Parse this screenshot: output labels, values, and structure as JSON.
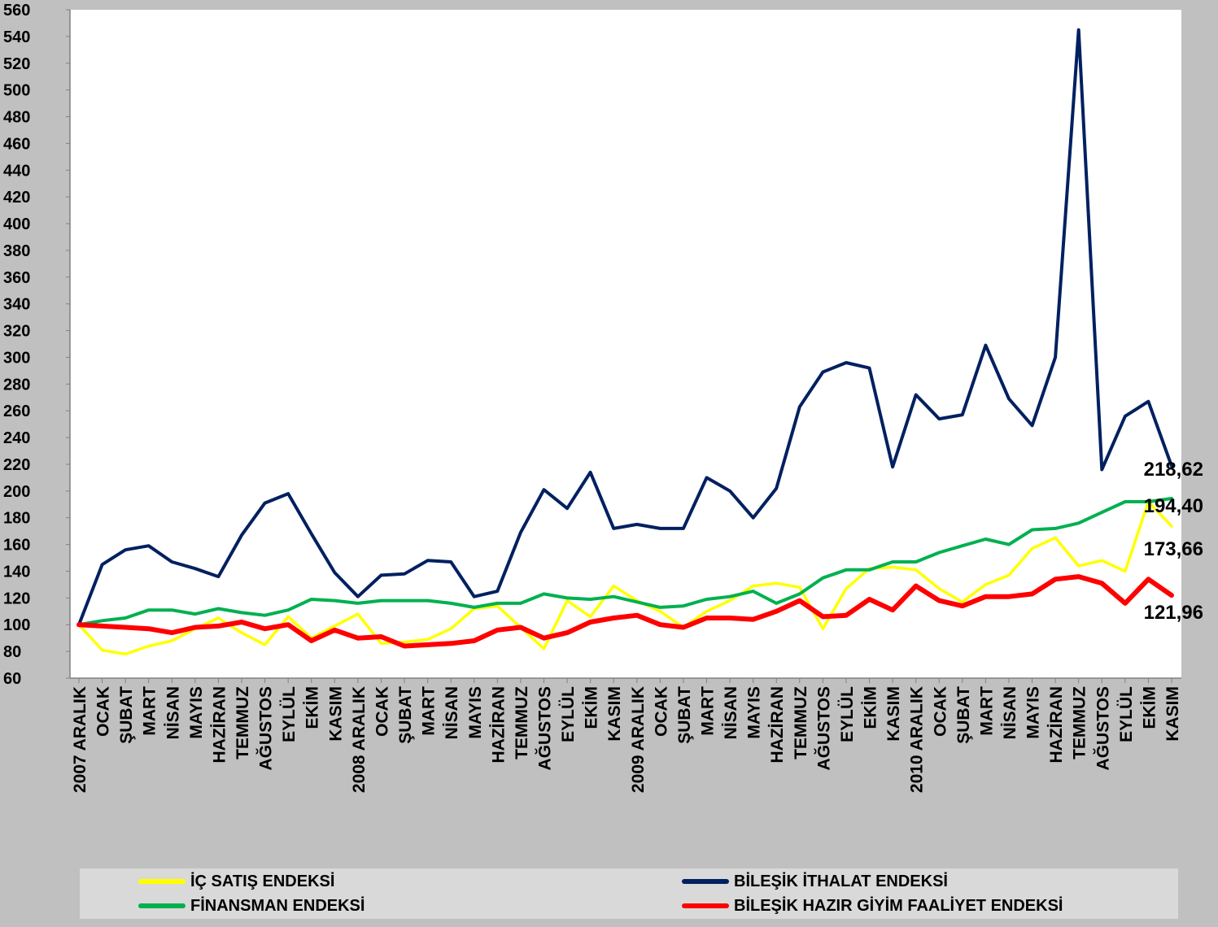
{
  "chart_data": {
    "type": "line",
    "title": "",
    "xlabel": "",
    "ylabel": "",
    "ylim": [
      60,
      560
    ],
    "yticks": [
      60,
      80,
      100,
      120,
      140,
      160,
      180,
      200,
      220,
      240,
      260,
      280,
      300,
      320,
      340,
      360,
      380,
      400,
      420,
      440,
      460,
      480,
      500,
      520,
      540,
      560
    ],
    "grid": false,
    "legend_position": "bottom",
    "categories": [
      "2007 ARALIK",
      "OCAK",
      "ŞUBAT",
      "MART",
      "NİSAN",
      "MAYIS",
      "HAZİRAN",
      "TEMMUZ",
      "AĞUSTOS",
      "EYLÜL",
      "EKİM",
      "KASIM",
      "2008 ARALIK",
      "OCAK",
      "ŞUBAT",
      "MART",
      "NİSAN",
      "MAYIS",
      "HAZİRAN",
      "TEMMUZ",
      "AĞUSTOS",
      "EYLÜL",
      "EKİM",
      "KASIM",
      "2009 ARALIK",
      "OCAK",
      "ŞUBAT",
      "MART",
      "NİSAN",
      "MAYIS",
      "HAZİRAN",
      "TEMMUZ",
      "AĞUSTOS",
      "EYLÜL",
      "EKİM",
      "KASIM",
      "2010 ARALIK",
      "OCAK",
      "ŞUBAT",
      "MART",
      "NİSAN",
      "MAYIS",
      "HAZİRAN",
      "TEMMUZ",
      "AĞUSTOS",
      "EYLÜL",
      "EKİM",
      "KASIM"
    ],
    "series": [
      {
        "name": "İÇ SATIŞ ENDEKSİ",
        "color": "#ffff00",
        "values": [
          100,
          81,
          78,
          84,
          88,
          97,
          105,
          94,
          85,
          106,
          90,
          99,
          108,
          86,
          87,
          89,
          97,
          112,
          114,
          98,
          82,
          118,
          106,
          129,
          118,
          110,
          98,
          110,
          118,
          129,
          131,
          128,
          97,
          127,
          142,
          143,
          141,
          127,
          117,
          130,
          137,
          157,
          165,
          144,
          148,
          140,
          192,
          173.66
        ],
        "end_label": "173,66"
      },
      {
        "name": "BİLEŞİK İTHALAT ENDEKSİ",
        "color": "#002060",
        "values": [
          100,
          145,
          156,
          159,
          147,
          142,
          136,
          167,
          191,
          198,
          168,
          139,
          121,
          137,
          138,
          148,
          147,
          121,
          125,
          169,
          201,
          187,
          214,
          172,
          175,
          172,
          172,
          210,
          200,
          180,
          202,
          263,
          289,
          296,
          292,
          218,
          272,
          254,
          257,
          309,
          269,
          249,
          300,
          545,
          216,
          256,
          267,
          218.62
        ],
        "end_label": "218,62"
      },
      {
        "name": "FİNANSMAN ENDEKSİ",
        "color": "#00b050",
        "values": [
          100,
          103,
          105,
          111,
          111,
          108,
          112,
          109,
          107,
          111,
          119,
          118,
          116,
          118,
          118,
          118,
          116,
          113,
          116,
          116,
          123,
          120,
          119,
          121,
          117,
          113,
          114,
          119,
          121,
          125,
          116,
          123,
          135,
          141,
          141,
          147,
          147,
          154,
          159,
          164,
          160,
          171,
          172,
          176,
          184,
          192,
          192,
          194.4
        ],
        "end_label": "194,40"
      },
      {
        "name": "BİLEŞİK HAZIR GİYİM FAALİYET ENDEKSİ",
        "color": "#ff0000",
        "values": [
          100,
          99,
          98,
          97,
          94,
          98,
          99,
          102,
          97,
          100,
          88,
          96,
          90,
          91,
          84,
          85,
          86,
          88,
          96,
          98,
          90,
          94,
          102,
          105,
          107,
          100,
          98,
          105,
          105,
          104,
          110,
          118,
          106,
          107,
          119,
          111,
          129,
          118,
          114,
          121,
          121,
          123,
          134,
          136,
          131,
          116,
          134,
          121.96
        ],
        "end_label": "121,96"
      }
    ]
  }
}
